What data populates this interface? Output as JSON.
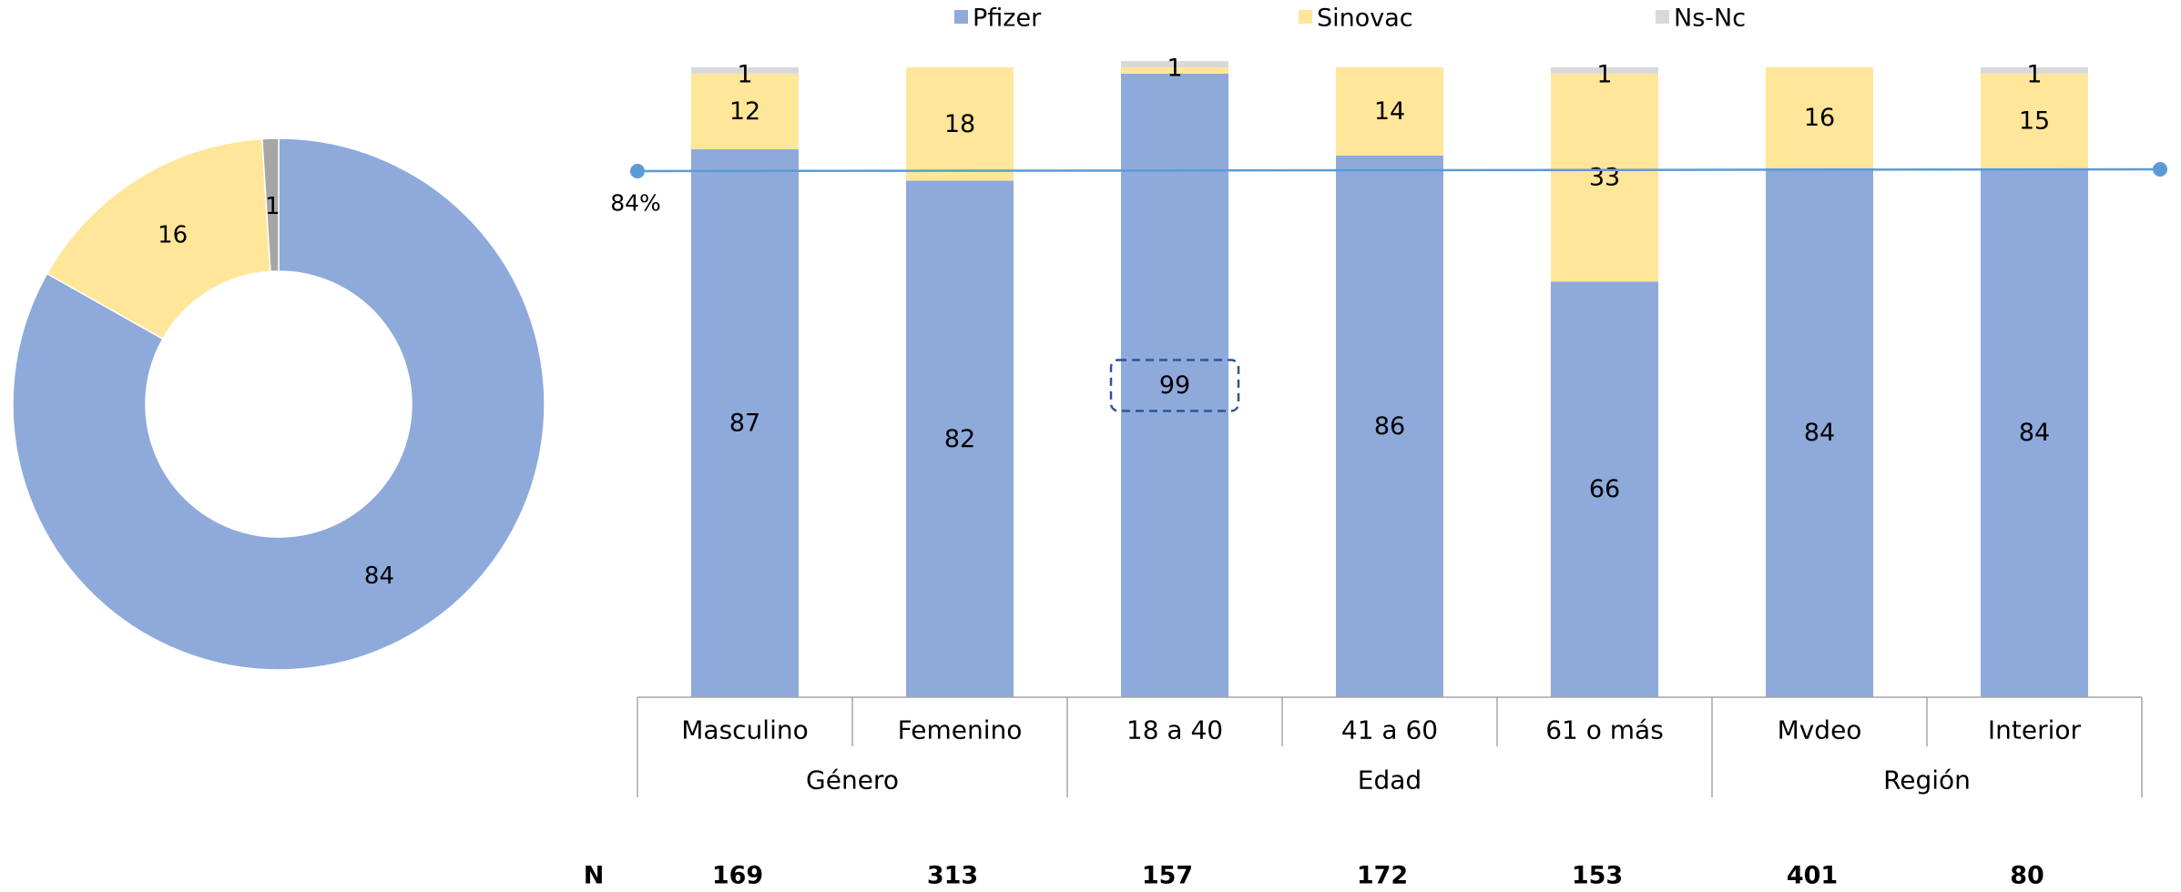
{
  "colors": {
    "pfizer": "#8eaadb",
    "sinovac": "#ffe699",
    "nsnc": "#d9d9d9",
    "refline": "#5b9bd5",
    "axis": "#a6a6a6"
  },
  "legend": [
    {
      "label": "Pfizer",
      "color": "#8eaadb"
    },
    {
      "label": "Sinovac",
      "color": "#ffe699"
    },
    {
      "label": "Ns-Nc",
      "color": "#d9d9d9"
    }
  ],
  "chart_data": [
    {
      "type": "pie",
      "subtype": "donut",
      "slices": [
        {
          "name": "Pfizer",
          "value": 84,
          "label": "84",
          "color": "#8eaadb"
        },
        {
          "name": "Sinovac",
          "value": 16,
          "label": "16",
          "color": "#ffe699"
        },
        {
          "name": "Ns-Nc",
          "value": 1,
          "label": "1",
          "color": "#a6a6a6"
        }
      ]
    },
    {
      "type": "bar",
      "stacked": true,
      "normalized_percent": true,
      "categories": [
        "Masculino",
        "Femenino",
        "18 a 40",
        "41 a 60",
        "61 o más",
        "Mvdeo",
        "Interior"
      ],
      "groups": [
        {
          "label": "Género",
          "span": [
            0,
            1
          ]
        },
        {
          "label": "Edad",
          "span": [
            2,
            4
          ]
        },
        {
          "label": "Región",
          "span": [
            5,
            6
          ]
        }
      ],
      "series": [
        {
          "name": "Pfizer",
          "color": "#8eaadb",
          "values": [
            87,
            82,
            99,
            86,
            66,
            84,
            84
          ],
          "labels": [
            "87",
            "82",
            "99",
            "86",
            "66",
            "84",
            "84"
          ]
        },
        {
          "name": "Sinovac",
          "color": "#ffe699",
          "values": [
            12,
            18,
            1,
            14,
            33,
            16,
            15
          ],
          "labels": [
            "12",
            "18",
            "",
            "14",
            "33",
            "16",
            "15"
          ]
        },
        {
          "name": "Ns-Nc",
          "color": "#d9d9d9",
          "values": [
            1,
            0,
            1,
            0,
            1,
            0,
            1
          ],
          "labels": [
            "1",
            "",
            "1",
            "",
            "1",
            "",
            "1"
          ]
        }
      ],
      "highlighted_label": {
        "category": "18 a 40",
        "series": "Pfizer"
      },
      "reference_line": {
        "value": 84,
        "label": "84%"
      },
      "n_row": {
        "label": "N",
        "values": [
          "169",
          "313",
          "157",
          "172",
          "153",
          "401",
          "80"
        ]
      },
      "ylim": [
        0,
        100
      ],
      "legend_position": "top"
    }
  ]
}
